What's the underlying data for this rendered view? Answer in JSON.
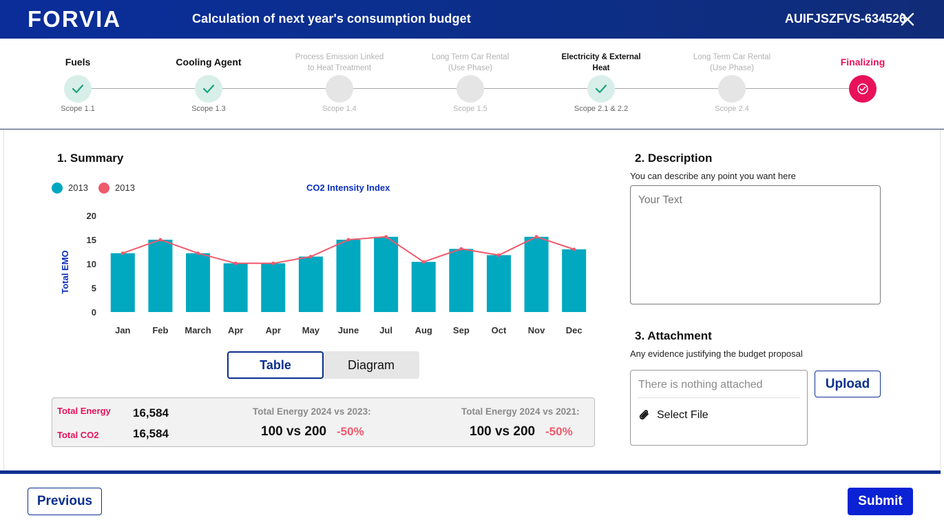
{
  "header": {
    "logo_text": "FORVIA",
    "title": "Calculation of next year's consumption budget",
    "document_id": "AUIFJSZFVS-634526"
  },
  "stepper": {
    "steps": [
      {
        "label": "Fuels",
        "scope": "Scope 1.1",
        "state": "done"
      },
      {
        "label": "Cooling Agent",
        "scope": "Scope 1.3",
        "state": "done"
      },
      {
        "label": "Process Emission Linked to Heat Treatment",
        "scope": "Scope 1.4",
        "state": "pending"
      },
      {
        "label": "Long Term Car Rental (Use Phase)",
        "scope": "Scope 1.5",
        "state": "pending"
      },
      {
        "label": "Electricity & External Heat",
        "scope": "Scope 2.1 & 2.2",
        "state": "done"
      },
      {
        "label": "Long Term Car Rental (Use Phase)",
        "scope": "Scope 2.4",
        "state": "pending"
      },
      {
        "label": "Finalizing",
        "scope": "",
        "state": "current"
      }
    ]
  },
  "summary": {
    "title": "1. Summary",
    "legend": [
      {
        "label": "2013",
        "color": "#00a8c0"
      },
      {
        "label": "2013",
        "color": "#ef5a6c"
      }
    ],
    "chart_title": "CO2 Intensity Index"
  },
  "chart_data": {
    "type": "bar",
    "title": "CO2 Intensity Index",
    "xlabel": "",
    "ylabel": "Total EMO",
    "ylim": [
      0,
      20
    ],
    "yticks": [
      0,
      5,
      10,
      15,
      20
    ],
    "categories": [
      "Jan",
      "Feb",
      "March",
      "Apr",
      "Apr",
      "May",
      "June",
      "Jul",
      "Aug",
      "Sep",
      "Oct",
      "Nov",
      "Dec"
    ],
    "series": [
      {
        "name": "2013",
        "type": "bar",
        "color": "#00a8c0",
        "values": [
          12.2,
          15,
          12.2,
          10.1,
          10.1,
          11.5,
          15,
          15.6,
          10.4,
          13.1,
          11.8,
          15.6,
          13
        ]
      },
      {
        "name": "2013",
        "type": "line",
        "color": "#ef5a6c",
        "values": [
          12.2,
          15,
          12.2,
          10.1,
          10.1,
          11.5,
          15,
          15.6,
          10.4,
          13.1,
          11.8,
          15.6,
          13
        ]
      }
    ]
  },
  "view_toggle": {
    "table_label": "Table",
    "diagram_label": "Diagram"
  },
  "totals": {
    "energy_label": "Total Energy",
    "energy_value": "16,584",
    "co2_label": "Total CO2",
    "co2_value": "16,584",
    "cmp1_label": "Total Energy 2024 vs 2023:",
    "cmp1_value": "100 vs 200",
    "cmp1_delta": "-50%",
    "cmp2_label": "Total Energy 2024 vs 2021:",
    "cmp2_value": "100 vs 200",
    "cmp2_delta": "-50%"
  },
  "description": {
    "title": "2. Description",
    "subtitle": "You can describe any point you want here",
    "placeholder": "Your Text"
  },
  "attachment": {
    "title": "3. Attachment",
    "subtitle": "Any evidence justifying the budget proposal",
    "empty_text": "There is nothing attached",
    "select_label": "Select File",
    "upload_label": "Upload"
  },
  "footer": {
    "previous_label": "Previous",
    "submit_label": "Submit"
  }
}
